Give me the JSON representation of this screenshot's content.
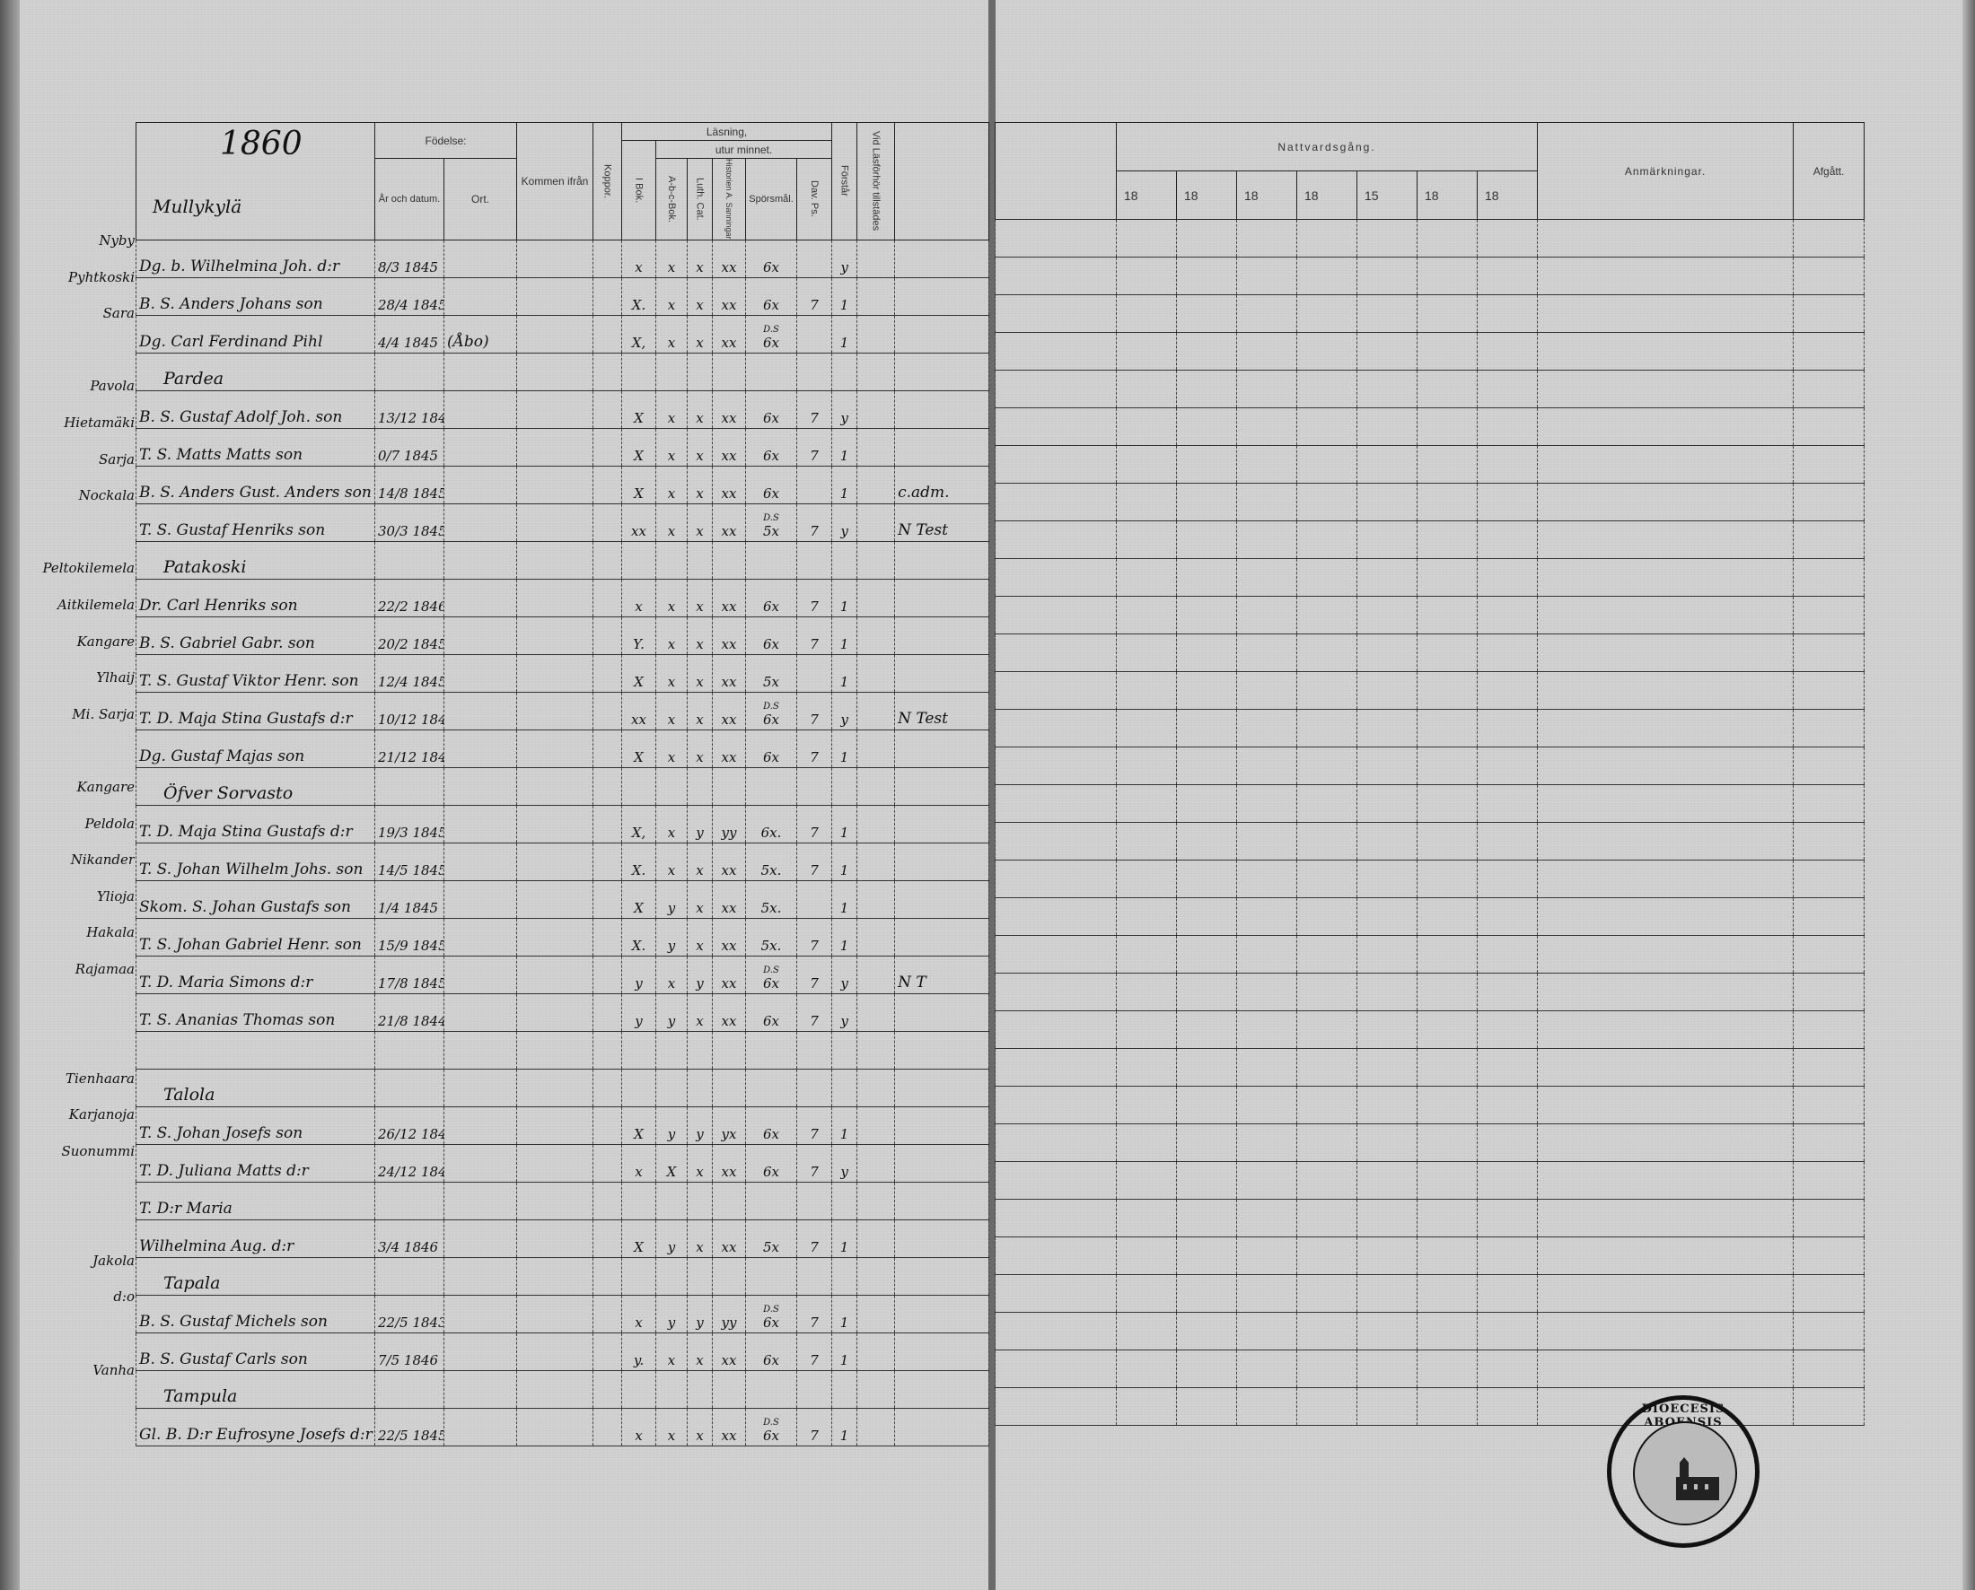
{
  "left_page": {
    "year": "1860",
    "first_heading": "Mullykylä",
    "header": {
      "name": "",
      "fodelse": "Födelse:",
      "ar_och_datum": "År och datum.",
      "ort": "Ort.",
      "kommen_ifran": "Kommen ifrån",
      "koppor": "Koppor.",
      "lasning": "Läsning,",
      "utur_minnet": "utur minnet.",
      "i_bok": "I Bok.",
      "abc_bok": "A-b-c-Bok.",
      "luth_cat": "Luth. Cat.",
      "hist_a_sann": "Historien A. Sanningar",
      "sporsmal": "Spörsmål.",
      "dav_ps": "Dav. Ps.",
      "forstar": "Förstår",
      "vid_lasforhor": "Vid Läsförhör tillstädes",
      "notes": ""
    },
    "rows": [
      {
        "village": "Nyby",
        "name": "Dg. b. Wilhelmina Joh. d:r",
        "date": "8/3 1845",
        "ort": "",
        "ibok": "x",
        "abc": "x",
        "luth": "x",
        "hist": "xx",
        "spors": "6x",
        "dav": "",
        "forstar": "y",
        "note": ""
      },
      {
        "village": "Pyhtkoski",
        "name": "B. S. Anders Johans son",
        "date": "28/4 1845",
        "ort": "",
        "ibok": "X.",
        "abc": "x",
        "luth": "x",
        "hist": "xx",
        "spors": "6x",
        "dav": "7",
        "forstar": "1",
        "note": ""
      },
      {
        "village": "Sara",
        "name": "Dg. Carl Ferdinand Pihl",
        "date": "4/4 1845",
        "ort": "(Åbo)",
        "ibok": "X,",
        "abc": "x",
        "luth": "x",
        "hist": "xx",
        "spors_ds": "D.S",
        "spors": "6x",
        "dav": "",
        "forstar": "1",
        "note": ""
      },
      {
        "heading": "Pardea"
      },
      {
        "village": "Pavola",
        "name": "B. S. Gustaf Adolf Joh. son",
        "date": "13/12 1845",
        "ort": "",
        "ibok": "X",
        "abc": "x",
        "luth": "x",
        "hist": "xx",
        "spors": "6x",
        "dav": "7",
        "forstar": "y",
        "note": ""
      },
      {
        "village": "Hietamäki",
        "name": "T. S. Matts Matts son",
        "date": "0/7 1845",
        "ort": "",
        "ibok": "X",
        "abc": "x",
        "luth": "x",
        "hist": "xx",
        "spors": "6x",
        "dav": "7",
        "forstar": "1",
        "note": ""
      },
      {
        "village": "Sarja",
        "name": "B. S. Anders Gust. Anders son",
        "date": "14/8 1845",
        "ort": "",
        "ibok": "X",
        "abc": "x",
        "luth": "x",
        "hist": "xx",
        "spors": "6x",
        "dav": "",
        "forstar": "1",
        "note": "c.adm."
      },
      {
        "village": "Nockala",
        "name": "T. S. Gustaf Henriks son",
        "date": "30/3 1845",
        "ort": "",
        "ibok": "xx",
        "abc": "x",
        "luth": "x",
        "hist": "xx",
        "spors_ds": "D.S",
        "spors": "5x",
        "dav": "7",
        "forstar": "y",
        "note": "N Test"
      },
      {
        "heading": "Patakoski"
      },
      {
        "village": "Peltokilemela",
        "name": "Dr. Carl Henriks son",
        "date": "22/2 1846",
        "ort": "",
        "ibok": "x",
        "abc": "x",
        "luth": "x",
        "hist": "xx",
        "spors": "6x",
        "dav": "7",
        "forstar": "1",
        "note": ""
      },
      {
        "village": "Aitkilemela",
        "name": "B. S. Gabriel Gabr. son",
        "date": "20/2 1845",
        "ort": "",
        "ibok": "Y.",
        "abc": "x",
        "luth": "x",
        "hist": "xx",
        "spors": "6x",
        "dav": "7",
        "forstar": "1",
        "note": ""
      },
      {
        "village": "Kangare",
        "name": "T. S. Gustaf Viktor Henr. son",
        "date": "12/4 1845",
        "ort": "",
        "ibok": "X",
        "abc": "x",
        "luth": "x",
        "hist": "xx",
        "spors": "5x",
        "dav": "",
        "forstar": "1",
        "note": ""
      },
      {
        "village": "Ylhaij",
        "name": "T. D. Maja Stina Gustafs d:r",
        "date": "10/12 1845",
        "ort": "",
        "ibok": "xx",
        "abc": "x",
        "luth": "x",
        "hist": "xx",
        "spors_ds": "D.S",
        "spors": "6x",
        "dav": "7",
        "forstar": "y",
        "note": "N Test"
      },
      {
        "village": "Mi. Sarja",
        "name": "Dg. Gustaf Majas son",
        "date": "21/12 1845",
        "ort": "",
        "ibok": "X",
        "abc": "x",
        "luth": "x",
        "hist": "xx",
        "spors": "6x",
        "dav": "7",
        "forstar": "1",
        "note": ""
      },
      {
        "heading": "Öfver Sorvasto"
      },
      {
        "village": "Kangare",
        "name": "T. D. Maja Stina Gustafs d:r",
        "date": "19/3 1845",
        "ort": "",
        "ibok": "X,",
        "abc": "x",
        "luth": "y",
        "hist": "yy",
        "spors": "6x.",
        "dav": "7",
        "forstar": "1",
        "note": ""
      },
      {
        "village": "Peldola",
        "name": "T. S. Johan Wilhelm Johs. son",
        "date": "14/5 1845",
        "ort": "",
        "ibok": "X.",
        "abc": "x",
        "luth": "x",
        "hist": "xx",
        "spors": "5x.",
        "dav": "7",
        "forstar": "1",
        "note": ""
      },
      {
        "village": "Nikander",
        "name": "Skom. S. Johan Gustafs son",
        "date": "1/4 1845",
        "ort": "",
        "ibok": "X",
        "abc": "y",
        "luth": "x",
        "hist": "xx",
        "spors": "5x.",
        "dav": "",
        "forstar": "1",
        "note": ""
      },
      {
        "village": "Ylioja",
        "name": "T. S. Johan Gabriel Henr. son",
        "date": "15/9 1845",
        "ort": "",
        "ibok": "X.",
        "abc": "y",
        "luth": "x",
        "hist": "xx",
        "spors": "5x.",
        "dav": "7",
        "forstar": "1",
        "note": ""
      },
      {
        "village": "Hakala",
        "name": "T. D. Maria Simons d:r",
        "date": "17/8 1845",
        "ort": "",
        "ibok": "y",
        "abc": "x",
        "luth": "y",
        "hist": "xx",
        "spors_ds": "D.S",
        "spors": "6x",
        "dav": "7",
        "forstar": "y",
        "note": "N T"
      },
      {
        "village": "Rajamaa",
        "name": "T. S. Ananias Thomas son",
        "date": "21/8 1844",
        "ort": "",
        "ibok": "y",
        "abc": "y",
        "luth": "x",
        "hist": "xx",
        "spors": "6x",
        "dav": "7",
        "forstar": "y",
        "note": ""
      },
      {
        "blank": true
      },
      {
        "heading": "Talola"
      },
      {
        "village": "Tienhaara",
        "name": "T. S. Johan Josefs son",
        "date": "26/12 1845",
        "ort": "",
        "ibok": "X",
        "abc": "y",
        "luth": "y",
        "hist": "yx",
        "spors": "6x",
        "dav": "7",
        "forstar": "1",
        "note": ""
      },
      {
        "village": "Karjanoja",
        "name": "T. D. Juliana Matts d:r",
        "date": "24/12 1845",
        "ort": "",
        "ibok": "x",
        "abc": "X",
        "luth": "x",
        "hist": "xx",
        "spors": "6x",
        "dav": "7",
        "forstar": "y",
        "note": ""
      },
      {
        "village": "Suonummi",
        "name": "T. D:r Maria",
        "date": "",
        "ort": "",
        "ibok": "",
        "abc": "",
        "luth": "",
        "hist": "",
        "spors": "",
        "dav": "",
        "forstar": "",
        "note": ""
      },
      {
        "village": "",
        "name": "Wilhelmina Aug. d:r",
        "date": "3/4 1846",
        "ort": "",
        "ibok": "X",
        "abc": "y",
        "luth": "x",
        "hist": "xx",
        "spors": "5x",
        "dav": "7",
        "forstar": "1",
        "note": ""
      },
      {
        "heading": "Tapala"
      },
      {
        "village": "Jakola",
        "name": "B. S. Gustaf Michels son",
        "date": "22/5 1843",
        "ort": "",
        "ibok": "x",
        "abc": "y",
        "luth": "y",
        "hist": "yy",
        "spors_ds": "D.S",
        "spors": "6x",
        "dav": "7",
        "forstar": "1",
        "note": ""
      },
      {
        "village": "d:o",
        "name": "B. S. Gustaf Carls son",
        "date": "7/5 1846",
        "ort": "",
        "ibok": "y.",
        "abc": "x",
        "luth": "x",
        "hist": "xx",
        "spors": "6x",
        "dav": "7",
        "forstar": "1",
        "note": ""
      },
      {
        "heading": "Tampula"
      },
      {
        "village": "Vanha",
        "name": "Gl. B. D:r Eufrosyne Josefs d:r",
        "date": "22/5 1845",
        "ort": "",
        "ibok": "x",
        "abc": "x",
        "luth": "x",
        "hist": "xx",
        "spors_ds": "D.S",
        "spors": "6x",
        "dav": "7",
        "forstar": "1",
        "note": ""
      }
    ]
  },
  "right_page": {
    "header": {
      "nattvardsgang": "Nattvardsgång.",
      "years": [
        "18",
        "18",
        "18",
        "18",
        "15",
        "18",
        "18"
      ],
      "anmarkningar": "Anmärkningar.",
      "afgatt": "Afgått."
    }
  },
  "stamp": {
    "text": "DIOECESIS ABOENSIS"
  },
  "colors": {
    "paper": "#d2d2d2",
    "ink": "#111111",
    "spine": "#6a6a6a"
  }
}
